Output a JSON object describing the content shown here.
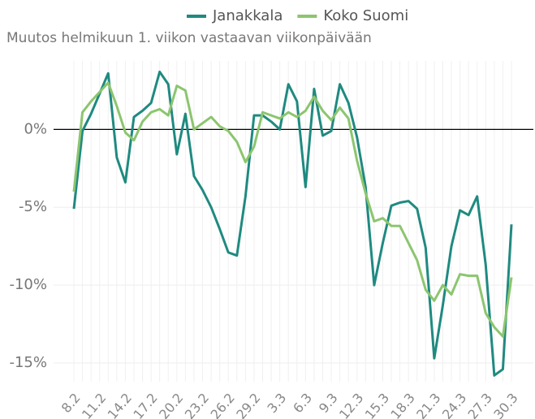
{
  "chart_data": {
    "type": "line",
    "subtitle": "Muutos helmikuun 1. viikon vastaavan viikonpäivään",
    "categories": [
      "8.2",
      null,
      null,
      "11.2",
      null,
      null,
      "14.2",
      null,
      null,
      "17.2",
      null,
      null,
      "20.2",
      null,
      null,
      "23.2",
      null,
      null,
      "26.2",
      null,
      null,
      "29.2",
      null,
      null,
      "3.3",
      null,
      null,
      "6.3",
      null,
      null,
      "9.3",
      null,
      null,
      "12.3",
      null,
      null,
      "15.3",
      null,
      null,
      "18.3",
      null,
      null,
      "21.3",
      null,
      null,
      "24.3",
      null,
      null,
      "27.3",
      null,
      null,
      "30.3"
    ],
    "series": [
      {
        "name": "Janakkala",
        "color": "#1f8a80",
        "values": [
          -5.1,
          -0.1,
          1.0,
          2.3,
          3.6,
          -1.8,
          -3.4,
          0.8,
          1.2,
          1.7,
          3.7,
          2.9,
          -1.6,
          1.0,
          -3.0,
          -3.9,
          -5.0,
          -6.4,
          -7.9,
          -8.1,
          -4.3,
          0.9,
          0.9,
          0.5,
          0,
          2.9,
          1.8,
          -3.7,
          2.6,
          -0.4,
          -0.1,
          2.9,
          1.7,
          -0.5,
          -3.7,
          -10.0,
          -7.3,
          -4.9,
          -4.7,
          -4.6,
          -5.1,
          -7.6,
          -14.7,
          -11.3,
          -7.5,
          -5.2,
          -5.5,
          -4.3,
          -8.7,
          -15.8,
          -15.4,
          -6.1
        ]
      },
      {
        "name": "Koko Suomi",
        "color": "#8cc56f",
        "values": [
          -4.0,
          1.1,
          1.8,
          2.4,
          3.0,
          1.5,
          -0.2,
          -0.7,
          0.5,
          1.1,
          1.3,
          0.9,
          2.8,
          2.5,
          0,
          0.4,
          0.8,
          0.2,
          -0.1,
          -0.8,
          -2.1,
          -1.1,
          1.1,
          0.9,
          0.7,
          1.1,
          0.8,
          1.2,
          2.1,
          1.2,
          0.6,
          1.4,
          0.7,
          -2.0,
          -4.1,
          -5.9,
          -5.7,
          -6.2,
          -6.2,
          -7.3,
          -8.4,
          -10.3,
          -11.0,
          -10.0,
          -10.6,
          -9.3,
          -9.4,
          -9.4,
          -11.8,
          -12.7,
          -13.3,
          -9.5
        ]
      }
    ],
    "ylim": [
      -16.2,
      4.4
    ],
    "yticks": [
      {
        "value": 0,
        "label": "0%"
      },
      {
        "value": -5,
        "label": "-5%"
      },
      {
        "value": -10,
        "label": "-10%"
      },
      {
        "value": -15,
        "label": "-15%"
      }
    ],
    "grid": true
  }
}
